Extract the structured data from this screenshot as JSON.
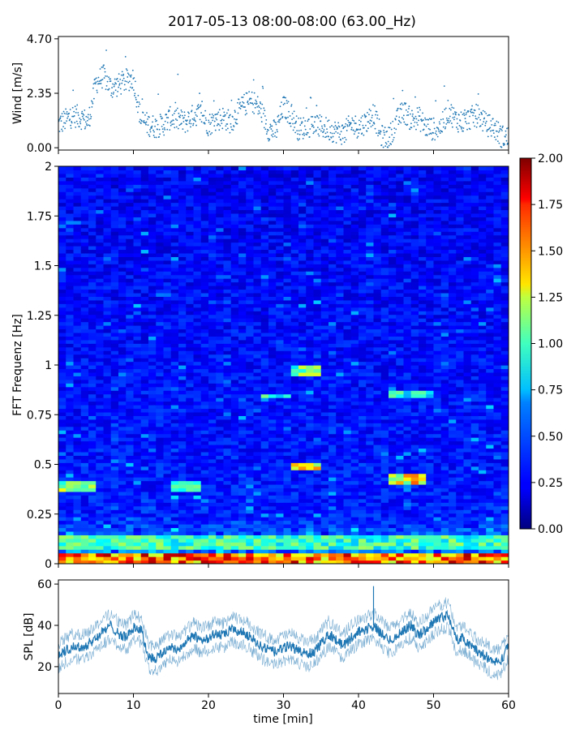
{
  "title": "2017-05-13 08:00-08:00 (63.00_Hz)",
  "chart_data": [
    {
      "id": "wind",
      "type": "scatter",
      "ylabel": "Wind [m/s]",
      "xlabel": "",
      "xlim": [
        0,
        60
      ],
      "ylim": [
        -0.1,
        4.8
      ],
      "yticks": [
        "0.00",
        "2.35",
        "4.70"
      ],
      "ytick_values": [
        0.0,
        2.35,
        4.7
      ],
      "color": "#1f77b4",
      "series": [
        {
          "x": [
            0,
            1,
            2,
            3,
            4,
            5,
            6,
            7,
            8,
            9,
            10,
            11,
            12,
            13,
            14,
            15,
            16,
            17,
            18,
            19,
            20,
            21,
            22,
            23,
            24,
            25,
            26,
            27,
            28,
            29,
            30,
            31,
            32,
            33,
            34,
            35,
            36,
            37,
            38,
            39,
            40,
            41,
            42,
            43,
            44,
            45,
            46,
            47,
            48,
            49,
            50,
            51,
            52,
            53,
            54,
            55,
            56,
            57,
            58,
            59,
            60
          ],
          "y": [
            1.0,
            1.2,
            1.4,
            1.3,
            1.1,
            2.8,
            3.1,
            2.6,
            2.7,
            2.9,
            3.0,
            1.2,
            1.0,
            0.9,
            1.0,
            1.3,
            1.2,
            1.1,
            1.4,
            1.5,
            1.0,
            1.2,
            1.3,
            1.1,
            1.6,
            1.9,
            2.0,
            1.6,
            0.8,
            0.7,
            1.8,
            1.4,
            0.8,
            0.9,
            1.0,
            0.9,
            0.8,
            0.7,
            0.6,
            1.0,
            0.9,
            1.1,
            1.5,
            0.5,
            0.4,
            1.1,
            1.6,
            1.2,
            1.3,
            0.9,
            0.8,
            0.9,
            1.6,
            1.2,
            1.1,
            1.3,
            1.4,
            1.0,
            0.9,
            0.5,
            0.4
          ]
        }
      ]
    },
    {
      "id": "spectrogram",
      "type": "heatmap",
      "ylabel": "FFT Frequenz [Hz]",
      "xlabel": "",
      "xlim": [
        0,
        60
      ],
      "ylim": [
        0,
        2
      ],
      "yticks": [
        "0",
        "0.25",
        "0.5",
        "0.75",
        "1",
        "1.25",
        "1.5",
        "1.75",
        "2"
      ],
      "ytick_values": [
        0,
        0.25,
        0.5,
        0.75,
        1.0,
        1.25,
        1.5,
        1.75,
        2.0
      ],
      "colormap": "jet",
      "colorbar": {
        "min": 0.0,
        "max": 2.0,
        "ticks": [
          "0.00",
          "0.25",
          "0.50",
          "0.75",
          "1.00",
          "1.25",
          "1.50",
          "1.75",
          "2.00"
        ],
        "tick_values": [
          0.0,
          0.25,
          0.5,
          0.75,
          1.0,
          1.25,
          1.5,
          1.75,
          2.0
        ]
      },
      "features": [
        {
          "x": [
            0,
            60
          ],
          "f": [
            0.0,
            0.05
          ],
          "value": 1.6
        },
        {
          "x": [
            0,
            60
          ],
          "f": [
            0.08,
            0.15
          ],
          "value": 0.9
        },
        {
          "x": [
            0,
            5
          ],
          "f": [
            0.37,
            0.41
          ],
          "value": 1.1
        },
        {
          "x": [
            15,
            19
          ],
          "f": [
            0.36,
            0.41
          ],
          "value": 1.0
        },
        {
          "x": [
            31,
            35
          ],
          "f": [
            0.47,
            0.5
          ],
          "value": 1.3
        },
        {
          "x": [
            31,
            35
          ],
          "f": [
            0.95,
            1.0
          ],
          "value": 1.0
        },
        {
          "x": [
            27,
            31
          ],
          "f": [
            0.83,
            0.86
          ],
          "value": 0.9
        },
        {
          "x": [
            44,
            50
          ],
          "f": [
            0.84,
            0.88
          ],
          "value": 0.8
        },
        {
          "x": [
            44,
            49
          ],
          "f": [
            0.4,
            0.45
          ],
          "value": 1.3
        }
      ]
    },
    {
      "id": "spl",
      "type": "line",
      "ylabel": "SPL [dB]",
      "xlabel": "time [min]",
      "xlim": [
        0,
        60
      ],
      "ylim": [
        7,
        62
      ],
      "xticks": [
        "0",
        "10",
        "20",
        "30",
        "40",
        "50",
        "60"
      ],
      "xtick_values": [
        0,
        10,
        20,
        30,
        40,
        50,
        60
      ],
      "yticks": [
        "20",
        "40",
        "60"
      ],
      "ytick_values": [
        20,
        40,
        60
      ],
      "color": "#1f77b4",
      "series": [
        {
          "x": [
            0,
            1,
            2,
            3,
            4,
            5,
            6,
            7,
            8,
            9,
            10,
            11,
            12,
            13,
            14,
            15,
            16,
            17,
            18,
            19,
            20,
            21,
            22,
            23,
            24,
            25,
            26,
            27,
            28,
            29,
            30,
            31,
            32,
            33,
            34,
            35,
            36,
            37,
            38,
            39,
            40,
            41,
            42,
            43,
            44,
            45,
            46,
            47,
            48,
            49,
            50,
            51,
            52,
            53,
            54,
            55,
            56,
            57,
            58,
            59,
            60
          ],
          "y": [
            25,
            28,
            30,
            29,
            31,
            34,
            37,
            40,
            36,
            34,
            39,
            38,
            25,
            24,
            27,
            30,
            28,
            32,
            35,
            33,
            34,
            36,
            35,
            38,
            37,
            36,
            33,
            30,
            28,
            27,
            29,
            30,
            28,
            26,
            27,
            31,
            36,
            33,
            30,
            34,
            37,
            38,
            40,
            36,
            33,
            34,
            38,
            40,
            35,
            38,
            42,
            44,
            45,
            33,
            34,
            30,
            27,
            25,
            22,
            23,
            30
          ]
        }
      ]
    }
  ]
}
